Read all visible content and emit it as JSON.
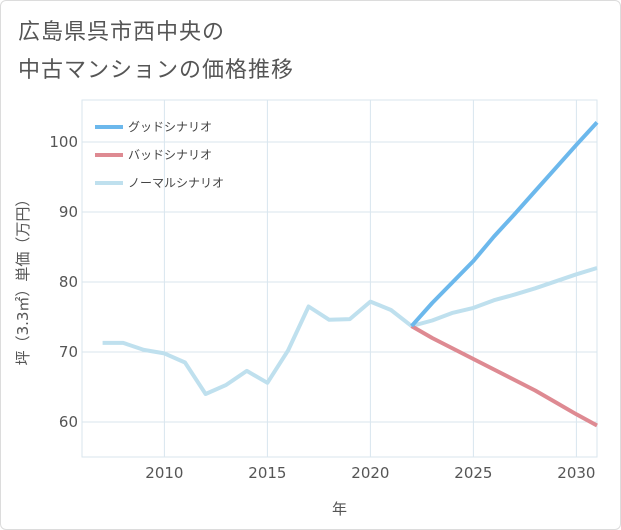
{
  "title": {
    "line1": "広島県呉市西中央の",
    "line2": "中古マンションの価格推移"
  },
  "chart_data": {
    "type": "line",
    "xlabel": "年",
    "ylabel": "坪（3.3㎡）単価（万円）",
    "xlim": [
      2006,
      2031
    ],
    "ylim": [
      55,
      106
    ],
    "xticks": [
      2010,
      2015,
      2020,
      2025,
      2030
    ],
    "yticks": [
      60,
      70,
      80,
      90,
      100
    ],
    "grid": true,
    "legend_position": "top-left",
    "series": [
      {
        "name": "グッドシナリオ",
        "color": "#6cb8ec",
        "x": [
          2022,
          2023,
          2024,
          2025,
          2026,
          2027,
          2028,
          2029,
          2030,
          2031
        ],
        "y": [
          73.7,
          77.0,
          80.0,
          83.0,
          86.5,
          89.7,
          93.0,
          96.3,
          99.6,
          102.8
        ]
      },
      {
        "name": "バッドシナリオ",
        "color": "#de8a92",
        "x": [
          2022,
          2023,
          2024,
          2025,
          2026,
          2027,
          2028,
          2029,
          2030,
          2031
        ],
        "y": [
          73.7,
          72.0,
          70.5,
          69.0,
          67.5,
          66.0,
          64.5,
          62.8,
          61.1,
          59.5
        ]
      },
      {
        "name": "ノーマルシナリオ",
        "color": "#bfe0ee",
        "x": [
          2007,
          2008,
          2009,
          2010,
          2011,
          2012,
          2013,
          2014,
          2015,
          2016,
          2017,
          2018,
          2019,
          2020,
          2021,
          2022,
          2023,
          2024,
          2025,
          2026,
          2027,
          2028,
          2029,
          2030,
          2031
        ],
        "y": [
          71.3,
          71.3,
          70.3,
          69.8,
          68.5,
          64.0,
          65.3,
          67.3,
          65.6,
          70.2,
          76.5,
          74.6,
          74.7,
          77.2,
          76.0,
          73.7,
          74.5,
          75.6,
          76.3,
          77.4,
          78.2,
          79.1,
          80.1,
          81.1,
          82.0
        ]
      }
    ]
  }
}
